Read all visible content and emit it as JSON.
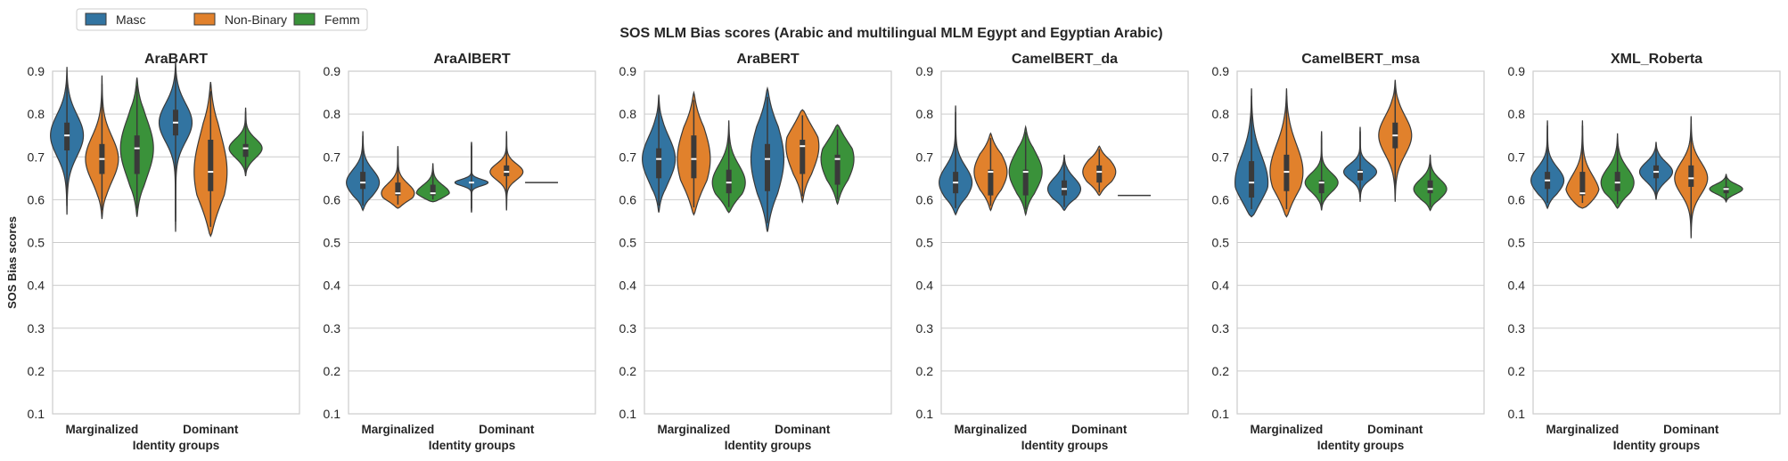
{
  "chart_data": {
    "type": "violin",
    "title": "SOS MLM Bias scores (Arabic and multilingual MLM Egypt and Egyptian Arabic)",
    "ylabel": "SOS Bias scores",
    "xlabel": "Identity groups",
    "categories": [
      "Marginalized",
      "Dominant"
    ],
    "ylim": [
      0.1,
      0.9
    ],
    "yticks": [
      "0.1",
      "0.2",
      "0.3",
      "0.4",
      "0.5",
      "0.6",
      "0.7",
      "0.8",
      "0.9"
    ],
    "grid": true,
    "legend": {
      "placement": "top-left",
      "entries": [
        {
          "name": "Masc",
          "color": "#3274a1"
        },
        {
          "name": "Non-Binary",
          "color": "#e1812c"
        },
        {
          "name": "Femm",
          "color": "#3a923a"
        }
      ]
    },
    "subplots": [
      {
        "title": "AraBART",
        "groups": [
          {
            "category": "Marginalized",
            "violins": [
              {
                "series": "Masc",
                "min": 0.565,
                "q1": 0.715,
                "median": 0.75,
                "q3": 0.78,
                "max": 0.91
              },
              {
                "series": "Non-Binary",
                "min": 0.555,
                "q1": 0.66,
                "median": 0.695,
                "q3": 0.73,
                "max": 0.89
              },
              {
                "series": "Femm",
                "min": 0.56,
                "q1": 0.66,
                "median": 0.72,
                "q3": 0.75,
                "max": 0.885
              }
            ]
          },
          {
            "category": "Dominant",
            "violins": [
              {
                "series": "Masc",
                "min": 0.525,
                "q1": 0.75,
                "median": 0.78,
                "q3": 0.81,
                "max": 0.925
              },
              {
                "series": "Non-Binary",
                "min": 0.515,
                "q1": 0.62,
                "median": 0.665,
                "q3": 0.74,
                "max": 0.875
              },
              {
                "series": "Femm",
                "min": 0.655,
                "q1": 0.7,
                "median": 0.72,
                "q3": 0.73,
                "max": 0.815
              }
            ]
          }
        ]
      },
      {
        "title": "AraAlBERT",
        "groups": [
          {
            "category": "Marginalized",
            "violins": [
              {
                "series": "Masc",
                "min": 0.575,
                "q1": 0.625,
                "median": 0.64,
                "q3": 0.665,
                "max": 0.76
              },
              {
                "series": "Non-Binary",
                "min": 0.58,
                "q1": 0.61,
                "median": 0.615,
                "q3": 0.64,
                "max": 0.725
              },
              {
                "series": "Femm",
                "min": 0.595,
                "q1": 0.61,
                "median": 0.615,
                "q3": 0.635,
                "max": 0.685
              }
            ]
          },
          {
            "category": "Dominant",
            "violins": [
              {
                "series": "Masc",
                "min": 0.57,
                "q1": 0.64,
                "median": 0.64,
                "q3": 0.64,
                "max": 0.735
              },
              {
                "series": "Non-Binary",
                "min": 0.575,
                "q1": 0.655,
                "median": 0.665,
                "q3": 0.68,
                "max": 0.76
              },
              {
                "series": "Femm",
                "min": 0.64,
                "q1": 0.64,
                "median": 0.64,
                "q3": 0.64,
                "max": 0.64
              }
            ]
          }
        ]
      },
      {
        "title": "AraBERT",
        "groups": [
          {
            "category": "Marginalized",
            "violins": [
              {
                "series": "Masc",
                "min": 0.57,
                "q1": 0.65,
                "median": 0.695,
                "q3": 0.72,
                "max": 0.845
              },
              {
                "series": "Non-Binary",
                "min": 0.565,
                "q1": 0.65,
                "median": 0.695,
                "q3": 0.75,
                "max": 0.85
              },
              {
                "series": "Femm",
                "min": 0.57,
                "q1": 0.615,
                "median": 0.64,
                "q3": 0.67,
                "max": 0.785
              }
            ]
          },
          {
            "category": "Dominant",
            "violins": [
              {
                "series": "Masc",
                "min": 0.525,
                "q1": 0.62,
                "median": 0.695,
                "q3": 0.73,
                "max": 0.86
              },
              {
                "series": "Non-Binary",
                "min": 0.595,
                "q1": 0.66,
                "median": 0.725,
                "q3": 0.74,
                "max": 0.81
              },
              {
                "series": "Femm",
                "min": 0.59,
                "q1": 0.635,
                "median": 0.695,
                "q3": 0.705,
                "max": 0.775
              }
            ]
          }
        ]
      },
      {
        "title": "CamelBERT_da",
        "groups": [
          {
            "category": "Marginalized",
            "violins": [
              {
                "series": "Masc",
                "min": 0.565,
                "q1": 0.615,
                "median": 0.64,
                "q3": 0.665,
                "max": 0.82
              },
              {
                "series": "Non-Binary",
                "min": 0.575,
                "q1": 0.61,
                "median": 0.665,
                "q3": 0.67,
                "max": 0.755
              },
              {
                "series": "Femm",
                "min": 0.565,
                "q1": 0.61,
                "median": 0.665,
                "q3": 0.67,
                "max": 0.77
              }
            ]
          },
          {
            "category": "Dominant",
            "violins": [
              {
                "series": "Masc",
                "min": 0.575,
                "q1": 0.61,
                "median": 0.625,
                "q3": 0.645,
                "max": 0.705
              },
              {
                "series": "Non-Binary",
                "min": 0.61,
                "q1": 0.64,
                "median": 0.665,
                "q3": 0.68,
                "max": 0.725
              },
              {
                "series": "Femm",
                "min": 0.61,
                "q1": 0.61,
                "median": 0.61,
                "q3": 0.61,
                "max": 0.61
              }
            ]
          }
        ]
      },
      {
        "title": "CamelBERT_msa",
        "groups": [
          {
            "category": "Marginalized",
            "violins": [
              {
                "series": "Masc",
                "min": 0.56,
                "q1": 0.605,
                "median": 0.64,
                "q3": 0.69,
                "max": 0.86
              },
              {
                "series": "Non-Binary",
                "min": 0.56,
                "q1": 0.62,
                "median": 0.665,
                "q3": 0.705,
                "max": 0.86
              },
              {
                "series": "Femm",
                "min": 0.575,
                "q1": 0.615,
                "median": 0.64,
                "q3": 0.645,
                "max": 0.76
              }
            ]
          },
          {
            "category": "Dominant",
            "violins": [
              {
                "series": "Masc",
                "min": 0.595,
                "q1": 0.645,
                "median": 0.665,
                "q3": 0.67,
                "max": 0.77
              },
              {
                "series": "Non-Binary",
                "min": 0.595,
                "q1": 0.72,
                "median": 0.75,
                "q3": 0.78,
                "max": 0.88
              },
              {
                "series": "Femm",
                "min": 0.575,
                "q1": 0.615,
                "median": 0.625,
                "q3": 0.645,
                "max": 0.705
              }
            ]
          }
        ]
      },
      {
        "title": "XML_Roberta",
        "groups": [
          {
            "category": "Marginalized",
            "violins": [
              {
                "series": "Masc",
                "min": 0.58,
                "q1": 0.625,
                "median": 0.645,
                "q3": 0.665,
                "max": 0.785
              },
              {
                "series": "Non-Binary",
                "min": 0.58,
                "q1": 0.61,
                "median": 0.615,
                "q3": 0.665,
                "max": 0.785
              },
              {
                "series": "Femm",
                "min": 0.58,
                "q1": 0.62,
                "median": 0.64,
                "q3": 0.665,
                "max": 0.755
              }
            ]
          },
          {
            "category": "Dominant",
            "violins": [
              {
                "series": "Masc",
                "min": 0.6,
                "q1": 0.65,
                "median": 0.665,
                "q3": 0.68,
                "max": 0.735
              },
              {
                "series": "Non-Binary",
                "min": 0.51,
                "q1": 0.63,
                "median": 0.65,
                "q3": 0.68,
                "max": 0.795
              },
              {
                "series": "Femm",
                "min": 0.595,
                "q1": 0.615,
                "median": 0.625,
                "q3": 0.63,
                "max": 0.66
              }
            ]
          }
        ]
      }
    ]
  }
}
